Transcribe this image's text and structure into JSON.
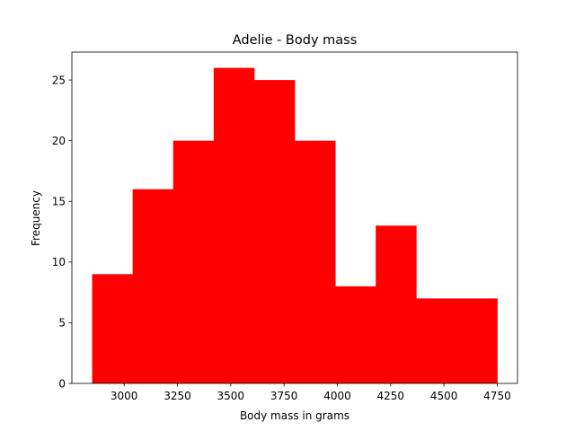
{
  "chart_data": {
    "type": "bar",
    "title": "Adelie - Body mass",
    "xlabel": "Body mass in grams",
    "ylabel": "Frequency",
    "bins": [
      {
        "start": 2850,
        "end": 3040,
        "count": 9
      },
      {
        "start": 3040,
        "end": 3230,
        "count": 16
      },
      {
        "start": 3230,
        "end": 3420,
        "count": 20
      },
      {
        "start": 3420,
        "end": 3610,
        "count": 26
      },
      {
        "start": 3610,
        "end": 3800,
        "count": 25
      },
      {
        "start": 3800,
        "end": 3990,
        "count": 20
      },
      {
        "start": 3990,
        "end": 4180,
        "count": 8
      },
      {
        "start": 4180,
        "end": 4370,
        "count": 13
      },
      {
        "start": 4370,
        "end": 4560,
        "count": 7
      },
      {
        "start": 4560,
        "end": 4750,
        "count": 7
      }
    ],
    "xlim": [
      2755,
      4845
    ],
    "ylim": [
      0,
      27.3
    ],
    "xticks": [
      3000,
      3250,
      3500,
      3750,
      4000,
      4250,
      4500,
      4750
    ],
    "xtick_labels": [
      "3000",
      "3250",
      "3500",
      "3750",
      "4000",
      "4250",
      "4500",
      "4750"
    ],
    "yticks": [
      0,
      5,
      10,
      15,
      20,
      25
    ],
    "ytick_labels": [
      "0",
      "5",
      "10",
      "15",
      "20",
      "25"
    ],
    "bar_color": "#ff0000",
    "grid": false,
    "legend": "none"
  }
}
